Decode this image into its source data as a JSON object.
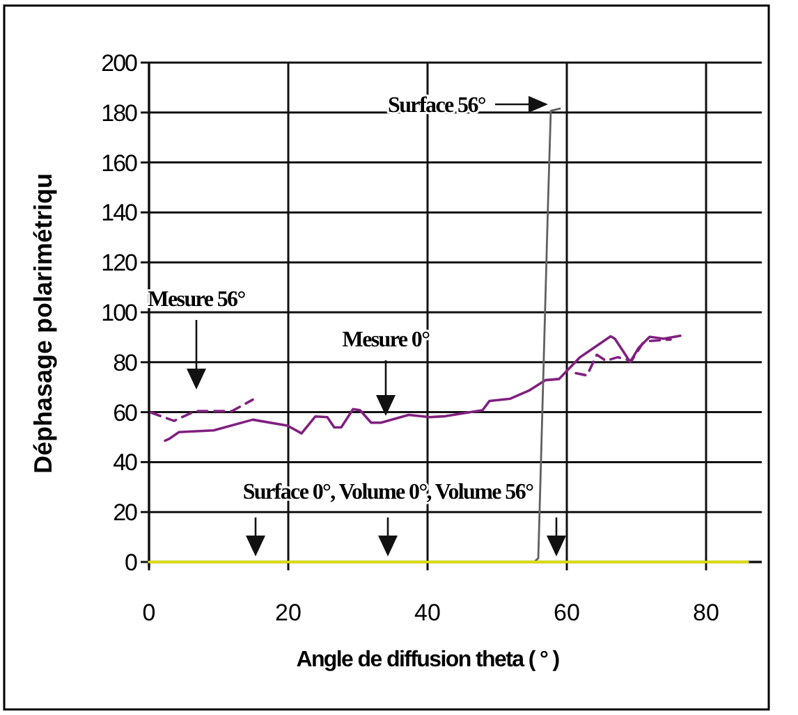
{
  "chart_data": {
    "type": "line",
    "xlabel": "Angle de diffusion theta ( ° )",
    "ylabel": "Déphasage polarimétriqu",
    "xlim": [
      0,
      88
    ],
    "ylim": [
      0,
      200
    ],
    "xticks": [
      0,
      20,
      40,
      60,
      80
    ],
    "yticks": [
      0,
      20,
      40,
      60,
      80,
      100,
      120,
      140,
      160,
      180,
      200
    ],
    "grid": true,
    "series": [
      {
        "color": "#80207f",
        "line_style": "solid",
        "x": [
          2.3,
          3.0,
          4.3,
          9.3,
          14.9,
          19.9,
          21.9,
          23.9,
          25.6,
          26.6,
          27.6,
          29.3,
          30.3,
          31.9,
          33.3,
          37.3,
          40.3,
          42.6,
          47.9,
          48.9,
          51.9,
          54.6,
          56.9,
          58.9,
          61.9,
          66.3,
          66.9,
          68.3,
          69.1,
          70.3,
          71.9,
          73.9,
          76.3
        ],
        "values": [
          48.6,
          49.5,
          52.0,
          52.7,
          57.0,
          54.6,
          51.5,
          58.3,
          58.0,
          53.9,
          53.9,
          61.2,
          60.8,
          55.8,
          55.8,
          58.9,
          58.0,
          58.4,
          60.8,
          64.5,
          65.4,
          68.7,
          72.8,
          73.3,
          82.0,
          90.4,
          89.4,
          83.5,
          80.1,
          85.7,
          90.2,
          89.4,
          90.6
        ]
      },
      {
        "color": "#80207f",
        "line_style": "dashed",
        "x": [
          0.3,
          3.6,
          6.6,
          11.9,
          14.9,
          38,
          61.3,
          62.9,
          64.3,
          65.6,
          67.3,
          69.3,
          70.9,
          71.9,
          74.9
        ],
        "values": [
          59.8,
          56.5,
          60.4,
          60.4,
          65.0,
          null,
          75.6,
          74.7,
          83.0,
          80.6,
          82.0,
          80.6,
          87.6,
          88.5,
          89.1
        ]
      },
      {
        "color": "#606060",
        "line_style": "solid",
        "x": [
          55.3,
          55.9,
          56.3,
          57.3,
          57.7,
          59.0
        ],
        "values": [
          0,
          1.5,
          41.4,
          143.6,
          180.7,
          181.6
        ]
      },
      {
        "color": "#e8e800",
        "line_style": "solid",
        "x": [
          0,
          86
        ],
        "values": [
          0,
          0
        ]
      }
    ],
    "annotations": [
      "Mesure 56°",
      "Mesure 0°",
      {
        "text": "Surface 56°",
        "x": 57.3,
        "y": 183.3
      },
      {
        "text": "Surface 0°, Volume 0°, Volume 56°",
        "x": 34.3,
        "y": 0
      }
    ]
  }
}
